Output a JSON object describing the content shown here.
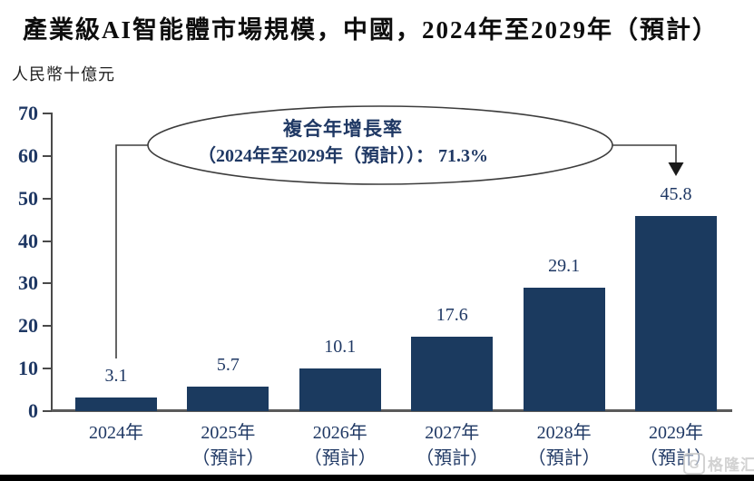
{
  "header": {
    "title": "產業級AI智能體市場規模，中國，2024年至2029年（預計）",
    "unit_label": "人民幣十億元"
  },
  "chart_data": {
    "type": "bar",
    "title": "產業級AI智能體市場規模，中國，2024年至2029年（預計）",
    "ylabel": "人民幣十億元",
    "xlabel": "",
    "ylim": [
      0,
      70
    ],
    "ytick_step": 10,
    "yticks": [
      0,
      10,
      20,
      30,
      40,
      50,
      60,
      70
    ],
    "grid": false,
    "legend": "none",
    "bar_color": "#1b3a5f",
    "label_color": "#1f3864",
    "categories": [
      {
        "year": "2024年",
        "note": ""
      },
      {
        "year": "2025年",
        "note": "（預計）"
      },
      {
        "year": "2026年",
        "note": "（預計）"
      },
      {
        "year": "2027年",
        "note": "（預計）"
      },
      {
        "year": "2028年",
        "note": "（預計）"
      },
      {
        "year": "2029年",
        "note": "（預計）"
      }
    ],
    "values": [
      3.1,
      5.7,
      10.1,
      17.6,
      29.1,
      45.8
    ],
    "value_labels": [
      "3.1",
      "5.7",
      "10.1",
      "17.6",
      "29.1",
      "45.8"
    ],
    "annotation": {
      "line1": "複合年增長率",
      "line2": "（2024年至2029年（預計））： 71.3%",
      "cagr_value": "71.3%"
    }
  },
  "watermark": {
    "logo_char": "G",
    "text": "格隆汇"
  }
}
